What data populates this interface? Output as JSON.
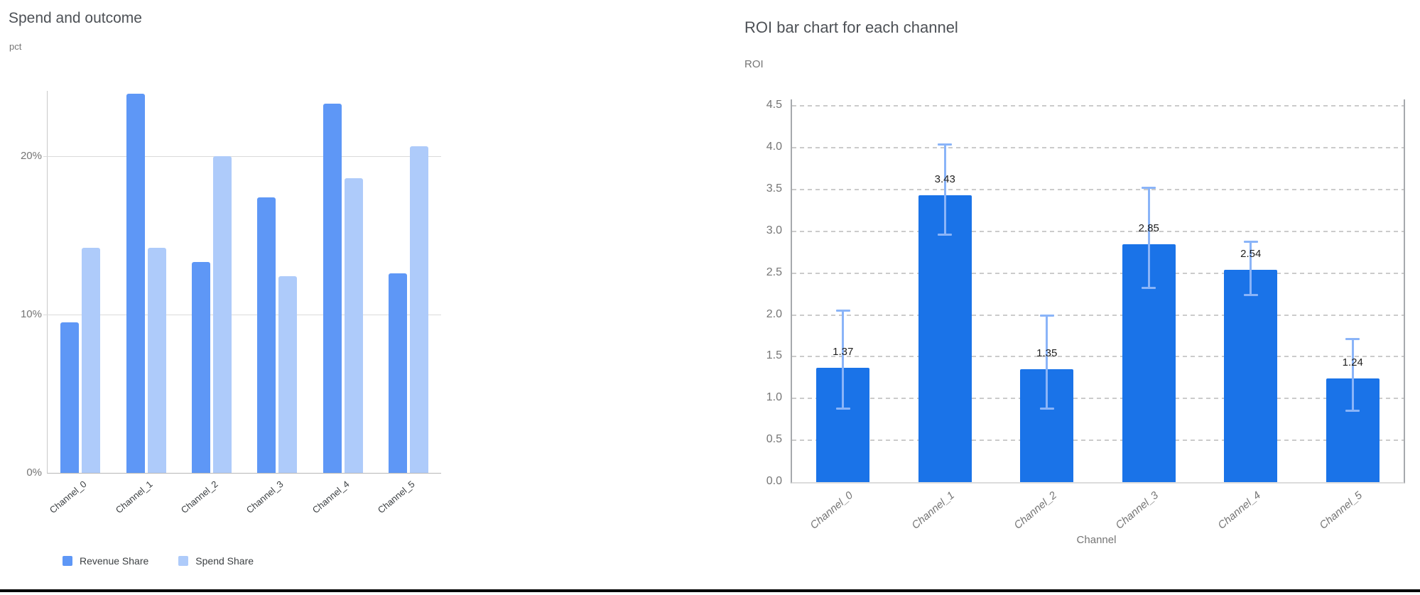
{
  "page": {
    "background": "#ffffff",
    "bottom_rule_color": "#000000"
  },
  "chart_data": [
    {
      "type": "bar",
      "variant": "grouped-vertical",
      "title": "Spend and outcome",
      "ylabel": "pct",
      "xlabel": "",
      "categories": [
        "Channel_0",
        "Channel_1",
        "Channel_2",
        "Channel_3",
        "Channel_4",
        "Channel_5"
      ],
      "series": [
        {
          "name": "Revenue Share",
          "color": "#5e97f6",
          "values": [
            9.5,
            23.9,
            13.3,
            17.4,
            23.3,
            12.6
          ]
        },
        {
          "name": "Spend Share",
          "color": "#aecbfa",
          "values": [
            14.2,
            14.2,
            20.0,
            12.4,
            18.6,
            20.6
          ]
        }
      ],
      "unit": "%",
      "y_ticks": {
        "labels": [
          "0%",
          "10%",
          "20%"
        ],
        "values": [
          0,
          10,
          20
        ]
      },
      "ylim": [
        0,
        24.1
      ],
      "grid": "horizontal-solid",
      "legend_position": "bottom",
      "x_label_rotation_deg": -40
    },
    {
      "type": "bar",
      "variant": "single-series-with-error-bars",
      "title": "ROI bar chart for each channel",
      "ylabel": "ROI",
      "xlabel": "Channel",
      "categories": [
        "Channel_0",
        "Channel_1",
        "Channel_2",
        "Channel_3",
        "Channel_4",
        "Channel_5"
      ],
      "values": [
        1.37,
        3.43,
        1.35,
        2.85,
        2.54,
        1.24
      ],
      "value_labels": [
        "1.37",
        "3.43",
        "1.35",
        "2.85",
        "2.54",
        "1.24"
      ],
      "error_low": [
        0.88,
        2.96,
        0.88,
        2.32,
        2.24,
        0.85
      ],
      "error_high": [
        2.05,
        4.04,
        1.99,
        3.52,
        2.88,
        1.71
      ],
      "bar_color": "#1a73e8",
      "error_bar_color": "#8ab4f8",
      "y_ticks": {
        "labels": [
          "0.0",
          "0.5",
          "1.0",
          "1.5",
          "2.0",
          "2.5",
          "3.0",
          "3.5",
          "4.0",
          "4.5"
        ],
        "values": [
          0,
          0.5,
          1,
          1.5,
          2,
          2.5,
          3,
          3.5,
          4,
          4.5
        ]
      },
      "ylim": [
        0,
        4.58
      ],
      "grid": "horizontal-dashed",
      "legend_position": "none",
      "x_label_rotation_deg": -40
    }
  ]
}
